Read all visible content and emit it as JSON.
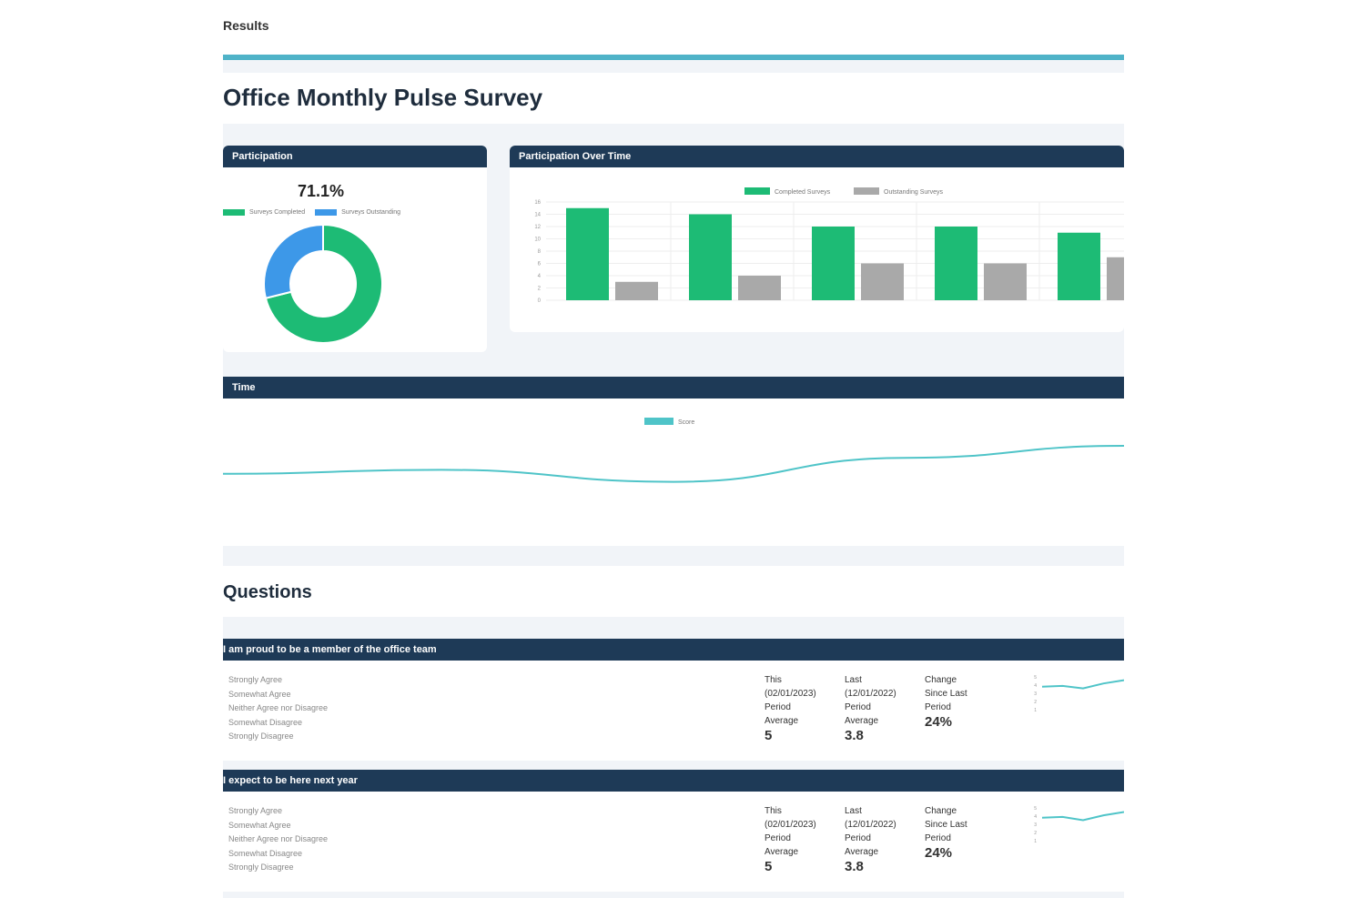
{
  "breadcrumb": "Results",
  "page_title": "Office Monthly Pulse Survey",
  "participation": {
    "header": "Participation",
    "percent": "71.1%",
    "legend": [
      {
        "label": "Surveys Completed",
        "color": "#1dbb75"
      },
      {
        "label": "Surveys Outstanding",
        "color": "#3d98e8"
      }
    ],
    "chart_data": {
      "type": "pie",
      "labels": [
        "Surveys Completed",
        "Surveys Outstanding"
      ],
      "values": [
        71.1,
        28.9
      ],
      "colors": [
        "#1dbb75",
        "#3d98e8"
      ]
    }
  },
  "participation_over_time": {
    "header": "Participation Over Time",
    "chart_data": {
      "type": "bar",
      "categories": [
        "",
        "",
        "",
        "",
        ""
      ],
      "series": [
        {
          "name": "Completed Surveys",
          "values": [
            15,
            14,
            12,
            12,
            11
          ],
          "color": "#1dbb75"
        },
        {
          "name": "Outstanding Surveys",
          "values": [
            3,
            4,
            6,
            6,
            7
          ],
          "color": "#a9a9a9"
        }
      ],
      "yticks": [
        0,
        2,
        4,
        6,
        8,
        10,
        12,
        14,
        16
      ],
      "ylim": [
        0,
        16
      ],
      "grid": true,
      "legend": "top"
    }
  },
  "over_time": {
    "header": "Time",
    "legend": [
      {
        "label": "Score",
        "color": "#4fc4c8"
      }
    ],
    "chart_data": {
      "type": "line",
      "x": [
        "",
        "",
        "",
        "",
        ""
      ],
      "series": [
        {
          "name": "Score",
          "values": [
            3.8,
            3.9,
            3.6,
            4.2,
            4.5
          ],
          "color": "#4fc4c8"
        }
      ],
      "ylim": [
        2.5,
        5
      ],
      "legend": "top"
    }
  },
  "questions_title": "Questions",
  "questions": [
    {
      "header": "I am proud to be a member of the office team",
      "options": [
        "Strongly Agree",
        "Somewhat Agree",
        "Neither Agree nor Disagree",
        "Somewhat Disagree",
        "Strongly Disagree"
      ],
      "this_period": {
        "label_lines": [
          "This",
          "(02/01/2023)",
          "Period",
          "Average"
        ],
        "value": "5"
      },
      "last_period": {
        "label_lines": [
          "Last",
          "(12/01/2022)",
          "Period",
          "Average"
        ],
        "value": "3.8"
      },
      "change": {
        "label_lines": [
          "Change",
          "Since Last",
          "Period"
        ],
        "value": "24%"
      },
      "chart_data": {
        "type": "line",
        "x": [
          "",
          "",
          "",
          "",
          ""
        ],
        "values": [
          3.8,
          3.9,
          3.6,
          4.2,
          4.6
        ],
        "ylim": [
          1,
          5
        ],
        "color": "#4fc4c8"
      }
    },
    {
      "header": "I expect to be here next year",
      "options": [
        "Strongly Agree",
        "Somewhat Agree",
        "Neither Agree nor Disagree",
        "Somewhat Disagree",
        "Strongly Disagree"
      ],
      "this_period": {
        "label_lines": [
          "This",
          "(02/01/2023)",
          "Period",
          "Average"
        ],
        "value": "5"
      },
      "last_period": {
        "label_lines": [
          "Last",
          "(12/01/2022)",
          "Period",
          "Average"
        ],
        "value": "3.8"
      },
      "change": {
        "label_lines": [
          "Change",
          "Since Last",
          "Period"
        ],
        "value": "24%"
      },
      "chart_data": {
        "type": "line",
        "x": [
          "",
          "",
          "",
          "",
          ""
        ],
        "values": [
          3.8,
          3.9,
          3.5,
          4.1,
          4.5
        ],
        "ylim": [
          1,
          5
        ],
        "color": "#4fc4c8"
      }
    }
  ]
}
